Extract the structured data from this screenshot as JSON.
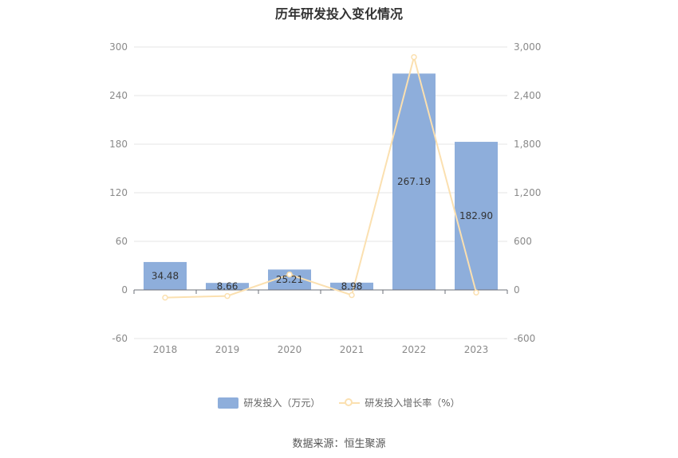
{
  "colors": {
    "bar": "#8eaedb",
    "line": "#fbe0b0",
    "grid": "#e6e6e6",
    "axis": "#6e7079"
  },
  "chart_data": {
    "type": "bar",
    "title": "历年研发投入变化情况",
    "categories": [
      "2018",
      "2019",
      "2020",
      "2021",
      "2022",
      "2023"
    ],
    "series": [
      {
        "name": "研发投入（万元）",
        "type": "bar",
        "axis": "left",
        "values": [
          34.48,
          8.66,
          25.21,
          8.98,
          267.19,
          182.9
        ],
        "labels": [
          "34.48",
          "8.66",
          "25.21",
          "8.98",
          "267.19",
          "182.90"
        ]
      },
      {
        "name": "研发投入增长率（%）",
        "type": "line",
        "axis": "right",
        "values": [
          -95,
          -75,
          191,
          -64,
          2875,
          -32
        ]
      }
    ],
    "y_left": {
      "min": -60,
      "max": 300,
      "ticks": [
        -60,
        0,
        60,
        120,
        180,
        240,
        300
      ],
      "tick_labels": [
        "-60",
        "0",
        "60",
        "120",
        "180",
        "240",
        "300"
      ]
    },
    "y_right": {
      "min": -600,
      "max": 3000,
      "ticks": [
        -600,
        0,
        600,
        1200,
        1800,
        2400,
        3000
      ],
      "tick_labels": [
        "-600",
        "0",
        "600",
        "1,200",
        "1,800",
        "2,400",
        "3,000"
      ]
    },
    "grid": true,
    "legend_position": "bottom"
  },
  "source": "数据来源：恒生聚源"
}
